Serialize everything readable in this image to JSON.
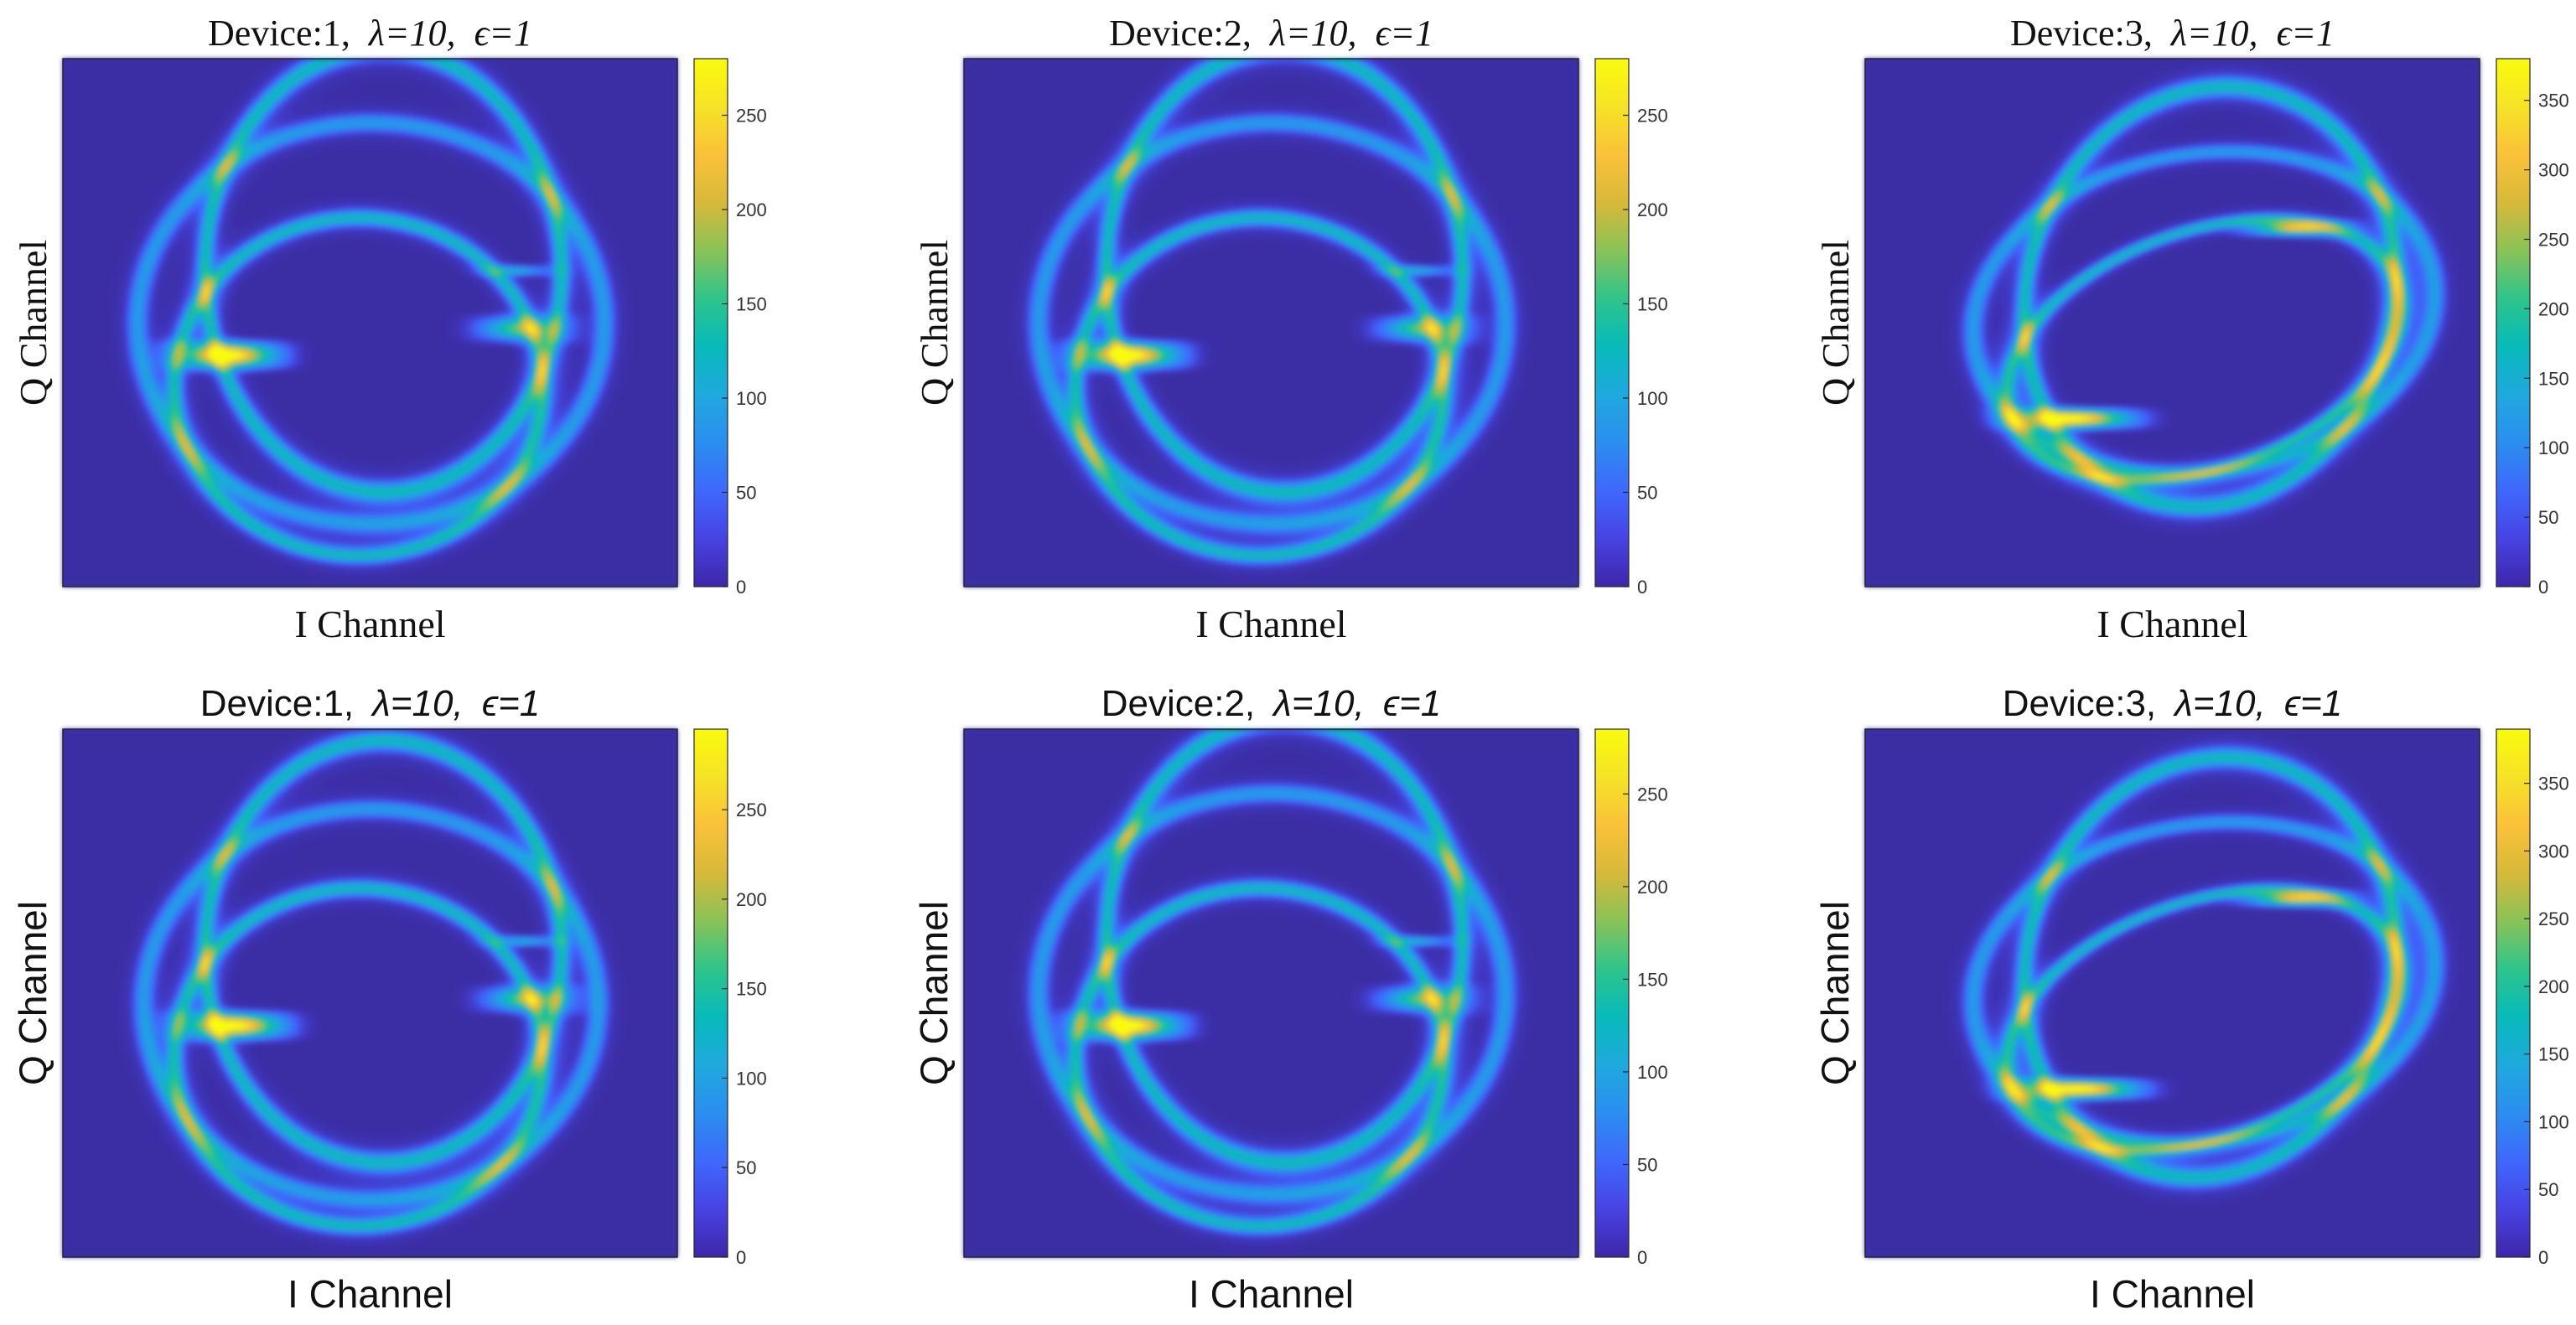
{
  "colors": {
    "background": "#3b2fa4",
    "colormap": [
      "#3e26a8",
      "#4743e4",
      "#3f68fc",
      "#2b8ef0",
      "#1fa9de",
      "#07bab9",
      "#2ec48c",
      "#89c357",
      "#d7b93a",
      "#fbc13b",
      "#f5e326",
      "#f9fb0e"
    ]
  },
  "chart_data": [
    {
      "type": "heatmap",
      "title": {
        "prefix": "Device:1,",
        "lambda": "λ=10,",
        "epsilon": "ϵ=1"
      },
      "xlabel": "I Channel",
      "ylabel": "Q Channel",
      "label_style": "serif",
      "colorbar": {
        "min": 0,
        "max": 280,
        "ticks": [
          0,
          50,
          100,
          150,
          200,
          250
        ]
      },
      "pattern": {
        "rings": [
          {
            "cx": 0.52,
            "cy": 0.4,
            "rx": 0.29,
            "ry": 0.42,
            "rot": 0,
            "w": 0.35
          },
          {
            "cx": 0.48,
            "cy": 0.62,
            "rx": 0.3,
            "ry": 0.32,
            "rot": 0,
            "w": 0.35
          },
          {
            "cx": 0.5,
            "cy": 0.5,
            "rx": 0.38,
            "ry": 0.38,
            "rot": 0,
            "w": 0.25
          }
        ],
        "clusters": [
          {
            "cx": 0.27,
            "cy": 0.56,
            "w": 0.22,
            "h": 0.06,
            "intensity": 1.0
          },
          {
            "cx": 0.74,
            "cy": 0.51,
            "w": 0.2,
            "h": 0.06,
            "intensity": 0.55
          },
          {
            "cx": 0.74,
            "cy": 0.4,
            "w": 0.15,
            "h": 0.025,
            "intensity": 0.35
          }
        ]
      }
    },
    {
      "type": "heatmap",
      "title": {
        "prefix": "Device:2,",
        "lambda": "λ=10,",
        "epsilon": "ϵ=1"
      },
      "xlabel": "I Channel",
      "ylabel": "Q Channel",
      "label_style": "serif",
      "colorbar": {
        "min": 0,
        "max": 280,
        "ticks": [
          0,
          50,
          100,
          150,
          200,
          250
        ]
      },
      "pattern": {
        "rings": [
          {
            "cx": 0.52,
            "cy": 0.4,
            "rx": 0.29,
            "ry": 0.42,
            "rot": 0,
            "w": 0.35
          },
          {
            "cx": 0.48,
            "cy": 0.62,
            "rx": 0.3,
            "ry": 0.32,
            "rot": 0,
            "w": 0.35
          },
          {
            "cx": 0.5,
            "cy": 0.5,
            "rx": 0.38,
            "ry": 0.38,
            "rot": 0,
            "w": 0.25
          }
        ],
        "clusters": [
          {
            "cx": 0.27,
            "cy": 0.56,
            "w": 0.22,
            "h": 0.06,
            "intensity": 1.0
          },
          {
            "cx": 0.74,
            "cy": 0.51,
            "w": 0.2,
            "h": 0.06,
            "intensity": 0.55
          },
          {
            "cx": 0.74,
            "cy": 0.4,
            "w": 0.15,
            "h": 0.025,
            "intensity": 0.35
          }
        ]
      }
    },
    {
      "type": "heatmap",
      "title": {
        "prefix": "Device:3,",
        "lambda": "λ=10,",
        "epsilon": "ϵ=1"
      },
      "xlabel": "I Channel",
      "ylabel": "Q Channel",
      "label_style": "serif",
      "colorbar": {
        "min": 0,
        "max": 380,
        "ticks": [
          0,
          50,
          100,
          150,
          200,
          250,
          300,
          350
        ]
      },
      "pattern": {
        "rings": [
          {
            "cx": 0.56,
            "cy": 0.45,
            "rx": 0.3,
            "ry": 0.4,
            "rot": 0.15,
            "w": 0.35
          },
          {
            "cx": 0.55,
            "cy": 0.55,
            "rx": 0.34,
            "ry": 0.22,
            "rot": -0.45,
            "w": 0.35
          },
          {
            "cx": 0.55,
            "cy": 0.48,
            "rx": 0.38,
            "ry": 0.3,
            "rot": -0.25,
            "w": 0.25
          }
        ],
        "clusters": [
          {
            "cx": 0.34,
            "cy": 0.68,
            "w": 0.26,
            "h": 0.045,
            "intensity": 1.0
          },
          {
            "cx": 0.7,
            "cy": 0.32,
            "w": 0.2,
            "h": 0.035,
            "intensity": 0.7
          }
        ]
      }
    },
    {
      "type": "heatmap",
      "title": {
        "prefix": "Device:1,",
        "lambda": "λ=10,",
        "epsilon": "ϵ=1"
      },
      "xlabel": "I Channel",
      "ylabel": "Q Channel",
      "label_style": "sans",
      "colorbar": {
        "min": 0,
        "max": 295,
        "ticks": [
          0,
          50,
          100,
          150,
          200,
          250
        ]
      },
      "pattern": {
        "rings": [
          {
            "cx": 0.52,
            "cy": 0.42,
            "rx": 0.29,
            "ry": 0.4,
            "rot": 0,
            "w": 0.35
          },
          {
            "cx": 0.48,
            "cy": 0.62,
            "rx": 0.3,
            "ry": 0.32,
            "rot": 0,
            "w": 0.35
          },
          {
            "cx": 0.5,
            "cy": 0.52,
            "rx": 0.37,
            "ry": 0.37,
            "rot": 0,
            "w": 0.25
          }
        ],
        "clusters": [
          {
            "cx": 0.28,
            "cy": 0.56,
            "w": 0.22,
            "h": 0.06,
            "intensity": 1.0
          },
          {
            "cx": 0.75,
            "cy": 0.51,
            "w": 0.2,
            "h": 0.06,
            "intensity": 0.55
          },
          {
            "cx": 0.75,
            "cy": 0.4,
            "w": 0.15,
            "h": 0.025,
            "intensity": 0.35
          }
        ]
      }
    },
    {
      "type": "heatmap",
      "title": {
        "prefix": "Device:2,",
        "lambda": "λ=10,",
        "epsilon": "ϵ=1"
      },
      "xlabel": "I Channel",
      "ylabel": "Q Channel",
      "label_style": "sans",
      "colorbar": {
        "min": 0,
        "max": 285,
        "ticks": [
          0,
          50,
          100,
          150,
          200,
          250
        ]
      },
      "pattern": {
        "rings": [
          {
            "cx": 0.52,
            "cy": 0.4,
            "rx": 0.29,
            "ry": 0.42,
            "rot": 0,
            "w": 0.35
          },
          {
            "cx": 0.48,
            "cy": 0.62,
            "rx": 0.3,
            "ry": 0.32,
            "rot": 0,
            "w": 0.35
          },
          {
            "cx": 0.5,
            "cy": 0.5,
            "rx": 0.38,
            "ry": 0.38,
            "rot": 0,
            "w": 0.25
          }
        ],
        "clusters": [
          {
            "cx": 0.27,
            "cy": 0.56,
            "w": 0.22,
            "h": 0.06,
            "intensity": 1.0
          },
          {
            "cx": 0.74,
            "cy": 0.51,
            "w": 0.2,
            "h": 0.06,
            "intensity": 0.55
          },
          {
            "cx": 0.74,
            "cy": 0.4,
            "w": 0.15,
            "h": 0.025,
            "intensity": 0.35
          }
        ]
      }
    },
    {
      "type": "heatmap",
      "title": {
        "prefix": "Device:3,",
        "lambda": "λ=10,",
        "epsilon": "ϵ=1"
      },
      "xlabel": "I Channel",
      "ylabel": "Q Channel",
      "label_style": "sans",
      "colorbar": {
        "min": 0,
        "max": 390,
        "ticks": [
          0,
          50,
          100,
          150,
          200,
          250,
          300,
          350
        ]
      },
      "pattern": {
        "rings": [
          {
            "cx": 0.56,
            "cy": 0.45,
            "rx": 0.3,
            "ry": 0.4,
            "rot": 0.15,
            "w": 0.35
          },
          {
            "cx": 0.55,
            "cy": 0.55,
            "rx": 0.34,
            "ry": 0.22,
            "rot": -0.45,
            "w": 0.35
          },
          {
            "cx": 0.55,
            "cy": 0.48,
            "rx": 0.38,
            "ry": 0.3,
            "rot": -0.25,
            "w": 0.25
          }
        ],
        "clusters": [
          {
            "cx": 0.35,
            "cy": 0.68,
            "w": 0.26,
            "h": 0.045,
            "intensity": 1.0
          },
          {
            "cx": 0.7,
            "cy": 0.32,
            "w": 0.2,
            "h": 0.035,
            "intensity": 0.7
          }
        ]
      }
    }
  ]
}
